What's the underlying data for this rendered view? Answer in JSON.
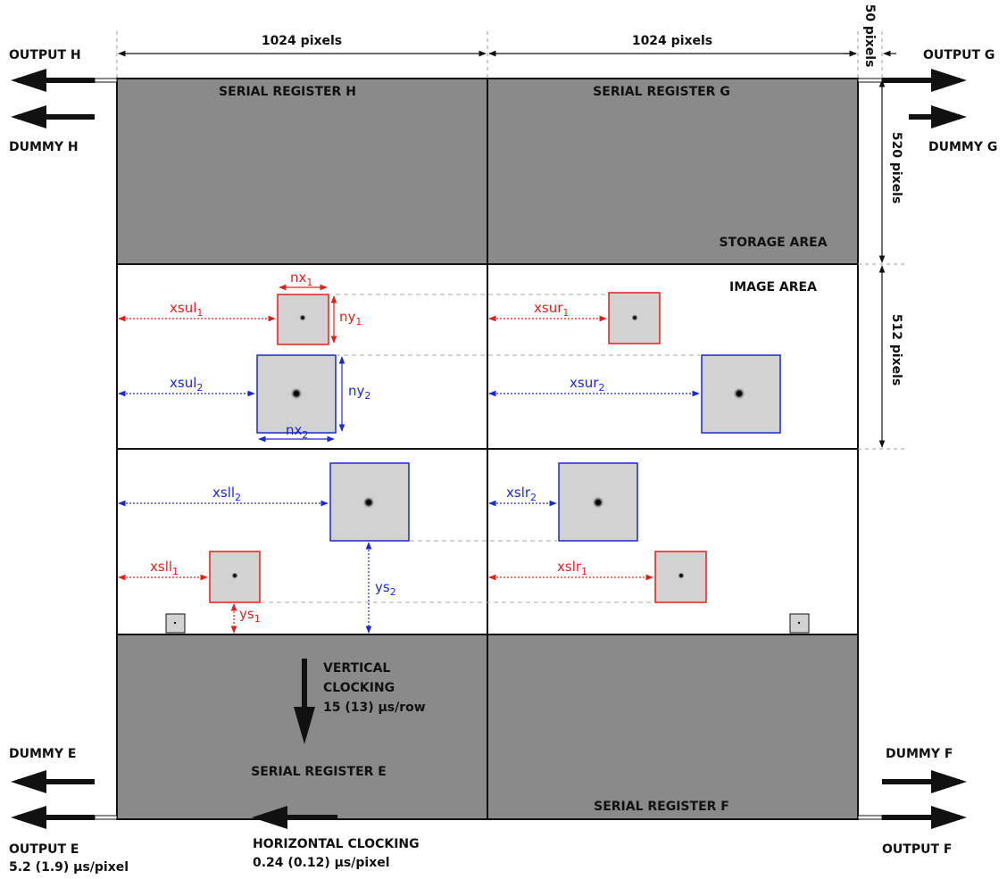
{
  "top_dims": {
    "left_width": "1024 pixels",
    "right_width": "1024 pixels",
    "gap_width": "50 pixels"
  },
  "right_dims": {
    "storage_height": "520 pixels",
    "image_height": "512 pixels"
  },
  "outputs": {
    "output_h": "OUTPUT H",
    "dummy_h": "DUMMY H",
    "output_g": "OUTPUT G",
    "dummy_g": "DUMMY G",
    "dummy_e": "DUMMY E",
    "output_e": "OUTPUT E",
    "output_e_rate": "5.2 (1.9) µs/pixel",
    "dummy_f": "DUMMY F",
    "output_f": "OUTPUT F"
  },
  "registers": {
    "h": "SERIAL REGISTER H",
    "g": "SERIAL REGISTER G",
    "e": "SERIAL REGISTER E",
    "f": "SERIAL REGISTER F"
  },
  "areas": {
    "storage": "STORAGE AREA",
    "image": "IMAGE AREA"
  },
  "clocking": {
    "vertical_line1": "VERTICAL",
    "vertical_line2": "CLOCKING",
    "vertical_rate": "15 (13) µs/row",
    "horizontal": "HORIZONTAL CLOCKING",
    "horizontal_rate": "0.24 (0.12) µs/pixel"
  },
  "labels": {
    "nx1": {
      "base": "nx",
      "sub": "1"
    },
    "ny1": {
      "base": "ny",
      "sub": "1"
    },
    "xsul1": {
      "base": "xsul",
      "sub": "1"
    },
    "xsur1": {
      "base": "xsur",
      "sub": "1"
    },
    "nx2": {
      "base": "nx",
      "sub": "2"
    },
    "ny2": {
      "base": "ny",
      "sub": "2"
    },
    "xsul2": {
      "base": "xsul",
      "sub": "2"
    },
    "xsur2": {
      "base": "xsur",
      "sub": "2"
    },
    "xsll2": {
      "base": "xsll",
      "sub": "2"
    },
    "xslr2": {
      "base": "xslr",
      "sub": "2"
    },
    "xsll1": {
      "base": "xsll",
      "sub": "1"
    },
    "xslr1": {
      "base": "xslr",
      "sub": "1"
    },
    "ys1": {
      "base": "ys",
      "sub": "1"
    },
    "ys2": {
      "base": "ys",
      "sub": "2"
    }
  },
  "colors": {
    "register_fill": "#8a8a8a",
    "window_1": "#e0201c",
    "window_2": "#1c28d0",
    "window_fill": "#d2d2d2",
    "line": "#111111"
  }
}
